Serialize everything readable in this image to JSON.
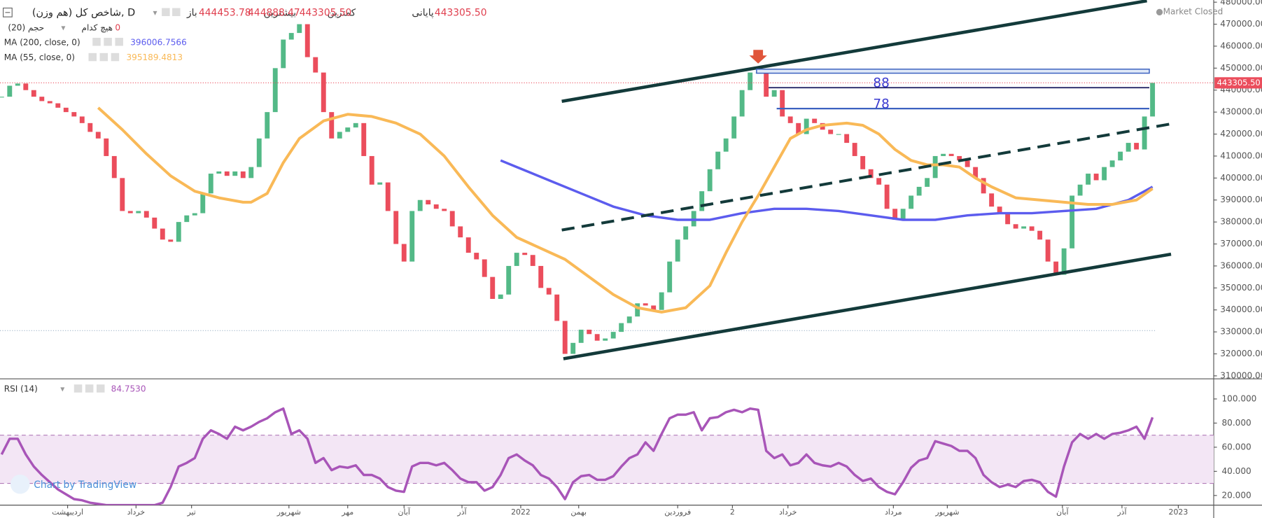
{
  "chart_data": [
    {
      "type": "candlestick",
      "title": "شاخص کل (هم وزن), D",
      "ohlc": [
        {
          "name": "باز",
          "value": 444453.78
        },
        {
          "name": "بیشترین",
          "value": 444888.47
        },
        {
          "name": "کمترین",
          "value": 443305.5,
          "label": "443305.50"
        },
        {
          "name": "پایانی",
          "value": 443305.5,
          "label": "443305.50"
        }
      ],
      "volume": {
        "name": "حجم (20)",
        "mode": "هیچ کدام",
        "value": 0
      },
      "status": "Market Closed",
      "watermark": "Chart by TradingView",
      "annotations": [
        "88",
        "78"
      ],
      "up_color": "#53b987",
      "down_color": "#eb4d5c",
      "ylim": [
        309000,
        481000
      ],
      "yticks": [
        {
          "value": 480000,
          "label": "480000.00"
        },
        {
          "value": 470000,
          "label": "470000.00"
        },
        {
          "value": 460000,
          "label": "460000.00"
        },
        {
          "value": 450000,
          "label": "450000.00"
        },
        {
          "value": 440000,
          "label": "440000.00"
        },
        {
          "value": 430000,
          "label": "430000.00"
        },
        {
          "value": 420000,
          "label": "420000.00"
        },
        {
          "value": 410000,
          "label": "410000.00"
        },
        {
          "value": 400000,
          "label": "400000.00"
        },
        {
          "value": 390000,
          "label": "390000.00"
        },
        {
          "value": 380000,
          "label": "380000.00"
        },
        {
          "value": 370000,
          "label": "370000.00"
        },
        {
          "value": 360000,
          "label": "360000.00"
        },
        {
          "value": 350000,
          "label": "350000.00"
        },
        {
          "value": 340000,
          "label": "340000.00"
        },
        {
          "value": 330000,
          "label": "330000.00"
        },
        {
          "value": 320000,
          "label": "320000.00"
        },
        {
          "value": 310000,
          "label": "310000.00"
        }
      ],
      "xticks": [
        {
          "value": 8.2,
          "label": "اردیبهشت"
        },
        {
          "value": 16.7,
          "label": "خرداد"
        },
        {
          "value": 23.6,
          "label": "تیر"
        },
        {
          "value": 35.7,
          "label": "شهریور"
        },
        {
          "value": 43,
          "label": "مهر"
        },
        {
          "value": 50,
          "label": "آبان"
        },
        {
          "value": 57.2,
          "label": "آذر"
        },
        {
          "value": 64.5,
          "label": "2022"
        },
        {
          "value": 71.7,
          "label": "بهمن"
        },
        {
          "value": 84,
          "label": "فروردین"
        },
        {
          "value": 90.8,
          "label": "2"
        },
        {
          "value": 97.7,
          "label": "خرداد"
        },
        {
          "value": 110.8,
          "label": "مرداد"
        },
        {
          "value": 117.5,
          "label": "شهریور"
        },
        {
          "value": 131.8,
          "label": "آبان"
        },
        {
          "value": 139.2,
          "label": "آذر"
        },
        {
          "value": 146.2,
          "label": "2023"
        }
      ],
      "values": [
        437000,
        442000,
        443000,
        440000,
        437000,
        435000,
        434000,
        432000,
        430000,
        428000,
        425000,
        421000,
        418000,
        410000,
        400000,
        385000,
        384000,
        385000,
        382000,
        377000,
        372000,
        371000,
        380000,
        383000,
        384000,
        393000,
        402000,
        403000,
        401000,
        403000,
        400000,
        405000,
        418000,
        430000,
        450000,
        463000,
        466000,
        470000,
        455000,
        448000,
        430000,
        418000,
        421000,
        423000,
        425000,
        410000,
        397000,
        398000,
        385000,
        370000,
        362000,
        385000,
        390000,
        388000,
        386000,
        385000,
        378000,
        373000,
        366000,
        363000,
        355000,
        345000,
        347000,
        360000,
        366000,
        365000,
        360000,
        350000,
        347000,
        335000,
        320000,
        325000,
        331000,
        329000,
        326000,
        327000,
        330000,
        334000,
        337000,
        343000,
        342000,
        340000,
        348000,
        362000,
        372000,
        378000,
        385000,
        394000,
        404000,
        412000,
        418000,
        428000,
        440000,
        448000,
        448000,
        437000,
        440000,
        428000,
        425000,
        420000,
        427000,
        425000,
        422000,
        420000,
        420000,
        416000,
        410000,
        404000,
        400000,
        397000,
        386000,
        381000,
        386000,
        392000,
        396000,
        400000,
        410000,
        411000,
        410000,
        408000,
        405000,
        400000,
        393000,
        387000,
        384000,
        379000,
        377000,
        378000,
        376000,
        372000,
        362000,
        356000,
        368000,
        392000,
        397000,
        402000,
        399000,
        405000,
        408000,
        412000,
        416000,
        413000,
        428000,
        443305.5
      ],
      "last_label": "443305.50",
      "series": [
        {
          "name": "MA (200, close, 0)",
          "color": "#5c5cee",
          "x": [
            62,
            64,
            68,
            72,
            76,
            80,
            84,
            88,
            92,
            96,
            100,
            104,
            108,
            112,
            116,
            120,
            124,
            128,
            132,
            136,
            140,
            143
          ],
          "values": [
            408000,
            405000,
            399000,
            393000,
            387000,
            383000,
            381000,
            381000,
            384000,
            386000,
            386000,
            385000,
            383000,
            381000,
            381000,
            383000,
            384000,
            384000,
            385000,
            386000,
            390000,
            396006.7566
          ]
        },
        {
          "name": "MA (55, close, 0)",
          "color": "#f9b957",
          "x": [
            12,
            15,
            18,
            21,
            24,
            27,
            30,
            31,
            33,
            35,
            37,
            40,
            43,
            46,
            49,
            52,
            55,
            58,
            61,
            64,
            67,
            70,
            73,
            76,
            79,
            82,
            85,
            88,
            90,
            92,
            94,
            96,
            98,
            100,
            102,
            105,
            107,
            109,
            111,
            113,
            115,
            117,
            119,
            121,
            123,
            126,
            129,
            132,
            135,
            138,
            141,
            143
          ],
          "values": [
            432000,
            422000,
            411000,
            401000,
            394000,
            391000,
            389000,
            389000,
            393000,
            407000,
            418000,
            426000,
            429000,
            428000,
            425000,
            420000,
            410000,
            396000,
            383000,
            373000,
            368000,
            363000,
            355000,
            347000,
            341000,
            339000,
            341000,
            351000,
            366000,
            380000,
            392000,
            405000,
            418000,
            422000,
            424000,
            425000,
            424000,
            420000,
            413000,
            408000,
            406000,
            406000,
            405000,
            400000,
            396000,
            391000,
            390000,
            389000,
            388000,
            388000,
            390000,
            395189.4813
          ]
        }
      ]
    },
    {
      "type": "line",
      "title": "RSI (14)",
      "value_label": "84.7530",
      "color": "#a855b8",
      "band": [
        30,
        70
      ],
      "ylim": [
        12,
        116
      ],
      "yticks": [
        {
          "value": 100,
          "label": "100.000"
        },
        {
          "value": 80,
          "label": "80.000"
        },
        {
          "value": 60,
          "label": "60.000"
        },
        {
          "value": 40,
          "label": "40.000"
        },
        {
          "value": 20,
          "label": "20.000"
        }
      ],
      "values": [
        54,
        67,
        67,
        54,
        44,
        37,
        31,
        25,
        21,
        17,
        16,
        14,
        13,
        12,
        12,
        12,
        12,
        12,
        12,
        12,
        14,
        27,
        44,
        47,
        51,
        67,
        74,
        71,
        67,
        77,
        74,
        77,
        81,
        84,
        89,
        92,
        71,
        74,
        67,
        47,
        51,
        41,
        44,
        43,
        45,
        37,
        37,
        34,
        27,
        24,
        23,
        44,
        47,
        47,
        45,
        47,
        41,
        34,
        31,
        31,
        24,
        27,
        37,
        51,
        54,
        49,
        45,
        37,
        34,
        27,
        17,
        31,
        36,
        37,
        33,
        33,
        36,
        44,
        51,
        54,
        64,
        57,
        71,
        84,
        87,
        87,
        89,
        74,
        84,
        85,
        89,
        91,
        89,
        92,
        91,
        57,
        51,
        54,
        45,
        47,
        54,
        47,
        45,
        44,
        47,
        44,
        37,
        32,
        34,
        27,
        23,
        21,
        31,
        43,
        49,
        51,
        65,
        63,
        61,
        57,
        57,
        51,
        37,
        31,
        27,
        29,
        27,
        32,
        33,
        31,
        23,
        19,
        44,
        64,
        71,
        67,
        71,
        67,
        71,
        72,
        74,
        77,
        67,
        84.753
      ]
    }
  ]
}
